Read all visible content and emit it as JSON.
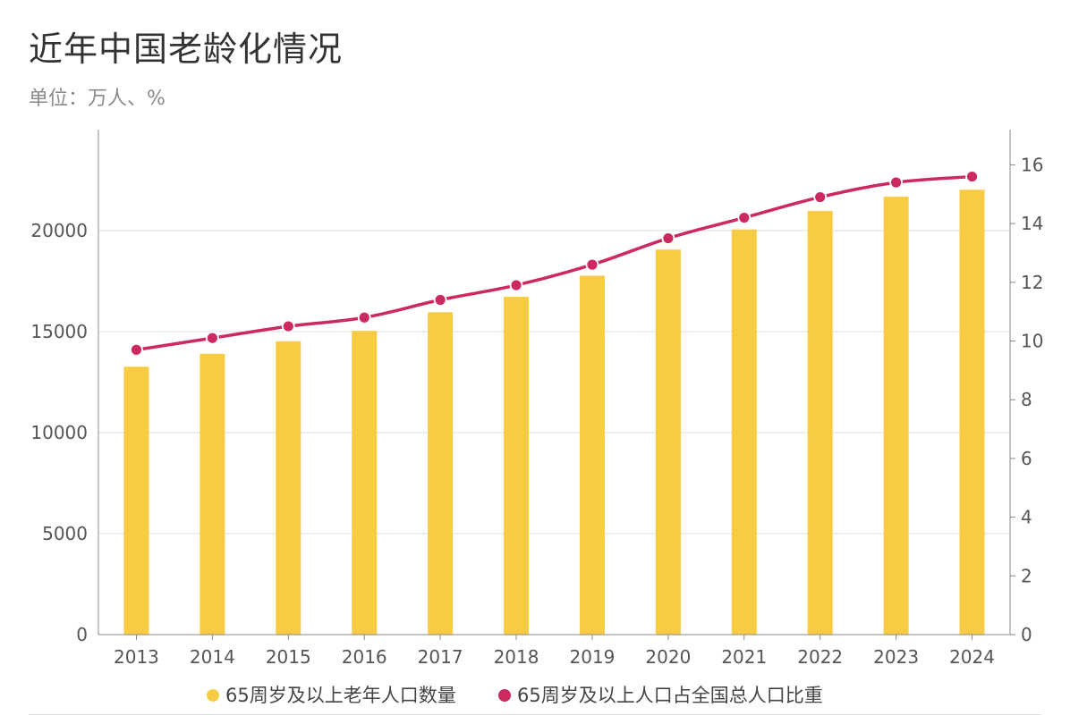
{
  "header": {
    "title": "近年中国老龄化情况",
    "subtitle": "单位：万人、%"
  },
  "colors": {
    "bar": "#f8cb45",
    "line": "#cc2a5e",
    "grid": "#dedede",
    "axis": "#888888"
  },
  "chart_data": {
    "type": "bar",
    "title": "近年中国老龄化情况",
    "subtitle": "单位：万人、%",
    "categories": [
      "2013",
      "2014",
      "2015",
      "2016",
      "2017",
      "2018",
      "2019",
      "2020",
      "2021",
      "2022",
      "2023",
      "2024"
    ],
    "series": [
      {
        "name": "65周岁及以上老年人口数量",
        "type": "bar",
        "axis": "left",
        "values": [
          13262,
          13902,
          14524,
          15037,
          15961,
          16724,
          17767,
          19064,
          20056,
          20978,
          21676,
          22023
        ]
      },
      {
        "name": "65周岁及以上人口占全国总人口比重",
        "type": "line",
        "axis": "right",
        "values": [
          9.7,
          10.1,
          10.5,
          10.8,
          11.4,
          11.9,
          12.6,
          13.5,
          14.2,
          14.9,
          15.4,
          15.6
        ]
      }
    ],
    "y_left": {
      "min": 0,
      "max": 25000,
      "ticks": [
        "0",
        "5000",
        "10000",
        "15000",
        "20000"
      ]
    },
    "y_right": {
      "min": 0,
      "max": 17.2,
      "ticks": [
        "0",
        "2",
        "4",
        "6",
        "8",
        "10",
        "12",
        "14",
        "16"
      ]
    },
    "grid": true,
    "legend": "bottom"
  }
}
